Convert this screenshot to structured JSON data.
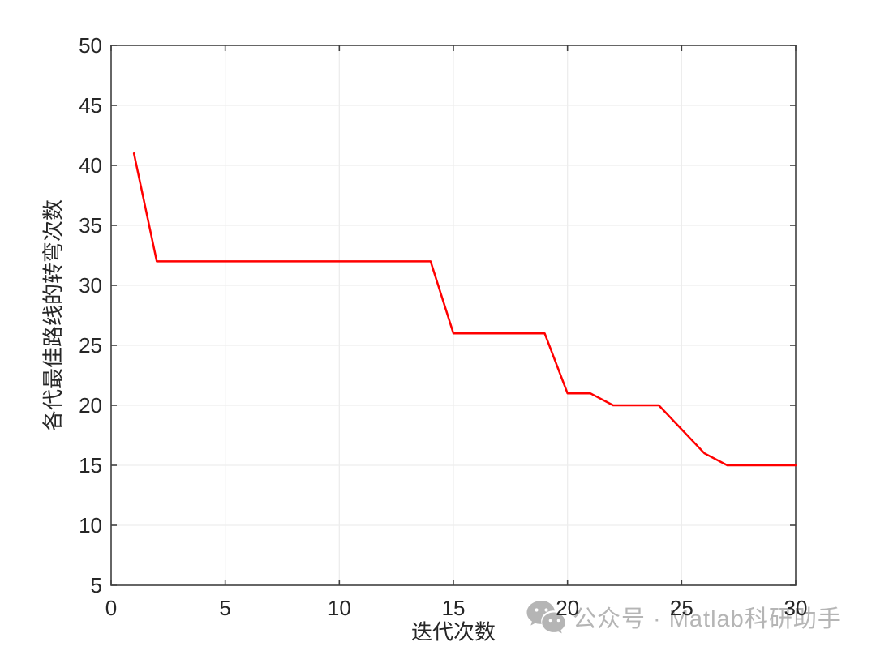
{
  "figure": {
    "background": "#ffffff",
    "watermark": {
      "icon": "wechat-icon",
      "text": "公众号 · Matlab科研助手",
      "color": "#b5b5b5"
    }
  },
  "chart_data": {
    "type": "line",
    "title": "",
    "xlabel": "迭代次数",
    "ylabel": "各代最佳路线的转弯次数",
    "x": [
      1,
      2,
      3,
      4,
      5,
      6,
      7,
      8,
      9,
      10,
      11,
      12,
      13,
      14,
      15,
      16,
      17,
      18,
      19,
      20,
      21,
      22,
      23,
      24,
      25,
      26,
      27,
      28,
      29,
      30
    ],
    "y": [
      41,
      32,
      32,
      32,
      32,
      32,
      32,
      32,
      32,
      32,
      32,
      32,
      32,
      32,
      26,
      26,
      26,
      26,
      26,
      21,
      21,
      20,
      20,
      20,
      18,
      16,
      15,
      15,
      15,
      15
    ],
    "xlim": [
      0,
      30
    ],
    "ylim": [
      5,
      50
    ],
    "xticks": [
      0,
      5,
      10,
      15,
      20,
      25,
      30
    ],
    "yticks": [
      5,
      10,
      15,
      20,
      25,
      30,
      35,
      40,
      45,
      50
    ],
    "grid": true,
    "legend": null,
    "line_color": "#ff0000",
    "line_width": 2.5,
    "axis_color": "#404040",
    "grid_color": "#ededed",
    "tick_label_color": "#262626",
    "tick_font_size": 26
  }
}
